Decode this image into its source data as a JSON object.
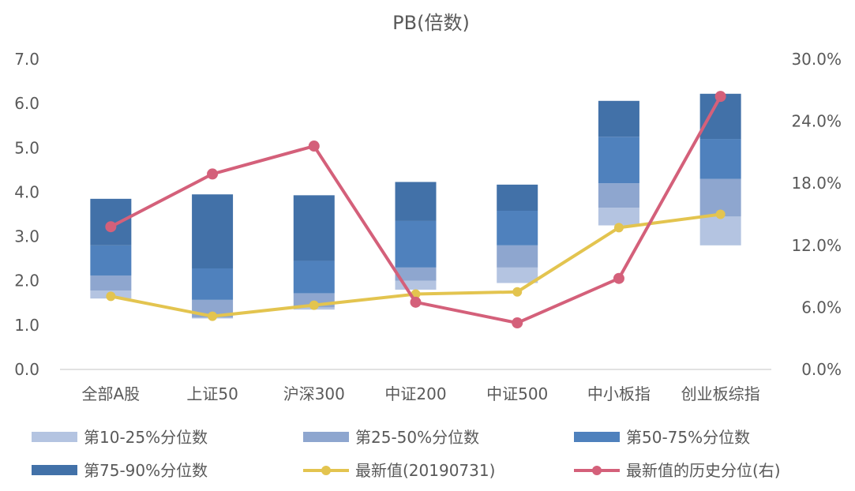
{
  "chart_data": {
    "type": "bar",
    "title": "PB(倍数)",
    "categories": [
      "全部A股",
      "上证50",
      "沪深300",
      "中证200",
      "中证500",
      "中小板指",
      "创业板综指"
    ],
    "y_left": {
      "ticks": [
        "0.0",
        "1.0",
        "2.0",
        "3.0",
        "4.0",
        "5.0",
        "6.0",
        "7.0"
      ],
      "ylim": [
        0,
        7
      ]
    },
    "y_right": {
      "ticks": [
        "0.0%",
        "6.0%",
        "12.0%",
        "18.0%",
        "24.0%",
        "30.0%"
      ],
      "ylim": [
        0,
        30
      ]
    },
    "grid": false,
    "legend_position": "bottom",
    "percentile_bars": [
      {
        "name": "第10-25%分位数",
        "color": "#b4c4e1",
        "lows": [
          1.6,
          1.15,
          1.35,
          1.8,
          1.95,
          3.25,
          2.8
        ],
        "highs": [
          1.78,
          1.17,
          1.4,
          2.0,
          2.3,
          3.65,
          3.45
        ]
      },
      {
        "name": "第25-50%分位数",
        "color": "#8ea6cf",
        "lows": [
          1.78,
          1.17,
          1.4,
          2.0,
          2.3,
          3.65,
          3.45
        ],
        "highs": [
          2.12,
          1.57,
          1.72,
          2.3,
          2.8,
          4.2,
          4.3
        ]
      },
      {
        "name": "第50-75%分位数",
        "color": "#4f81bd",
        "lows": [
          2.12,
          1.57,
          1.72,
          2.3,
          2.8,
          4.2,
          4.3
        ],
        "highs": [
          2.8,
          2.28,
          2.45,
          3.35,
          3.58,
          5.25,
          5.2
        ]
      },
      {
        "name": "第75-90%分位数",
        "color": "#4271a8",
        "lows": [
          2.8,
          2.28,
          2.45,
          3.35,
          3.58,
          5.25,
          5.2
        ],
        "highs": [
          3.85,
          3.95,
          3.93,
          4.23,
          4.17,
          6.06,
          6.22
        ]
      }
    ],
    "series": [
      {
        "name": "最新值(20190731)",
        "type": "line",
        "axis": "left",
        "color": "#e3c44f",
        "values": [
          1.65,
          1.2,
          1.45,
          1.7,
          1.75,
          3.2,
          3.5
        ]
      },
      {
        "name": "最新值的历史分位(右)",
        "type": "line",
        "axis": "right",
        "color": "#d4607a",
        "values": [
          13.8,
          18.9,
          21.6,
          6.5,
          4.5,
          8.8,
          26.4
        ]
      }
    ]
  }
}
